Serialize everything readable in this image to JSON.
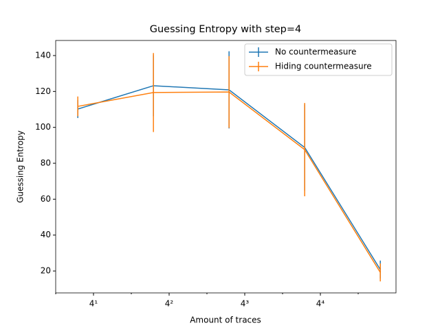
{
  "chart_data": {
    "type": "errorbar-line",
    "title": "Guessing Entropy with step=4",
    "xlabel": "Amount of traces",
    "ylabel": "Guessing Entropy",
    "x": [
      3,
      12,
      48,
      192,
      768
    ],
    "xscale": "log",
    "xbase": 4,
    "xlim": [
      2,
      1024
    ],
    "xticks": [
      {
        "value": 4,
        "label": "4¹"
      },
      {
        "value": 16,
        "label": "4²"
      },
      {
        "value": 64,
        "label": "4³"
      },
      {
        "value": 256,
        "label": "4⁴"
      }
    ],
    "xminorticks": [
      2,
      8,
      32,
      128,
      512
    ],
    "ylim": [
      7.8,
      148.4
    ],
    "yticks": [
      20,
      40,
      60,
      80,
      100,
      120,
      140
    ],
    "legend": "upper right",
    "series": [
      {
        "name": "No countermeasure",
        "color": "#1f77b4",
        "values": [
          110.2,
          123.2,
          120.9,
          88.8,
          20.8
        ],
        "errors": [
          5,
          17,
          21.5,
          24,
          5
        ]
      },
      {
        "name": "Hiding countermeasure",
        "color": "#ff7f0e",
        "values": [
          111.7,
          119.4,
          119.7,
          87.6,
          19.2
        ],
        "errors": [
          5.5,
          22,
          20,
          26,
          5
        ]
      }
    ]
  }
}
